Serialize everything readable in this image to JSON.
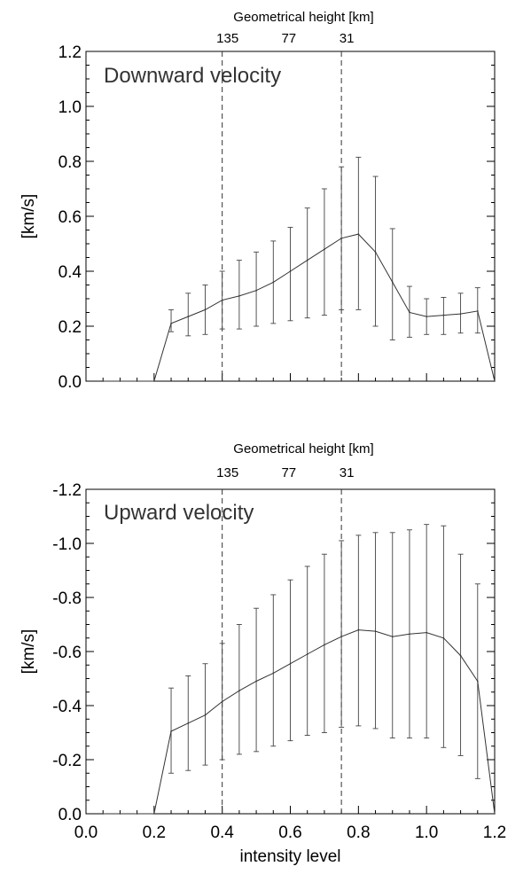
{
  "chart_data": [
    {
      "type": "line",
      "panel_label": "Downward velocity",
      "top_axis_title": "Geometrical height [km]",
      "top_axis_ticks": [
        {
          "x": 0.4,
          "label": "135"
        },
        {
          "x": 0.58,
          "label": "77"
        },
        {
          "x": 0.75,
          "label": "31"
        }
      ],
      "ylabel": "[km/s]",
      "xlabel": "",
      "xlim": [
        0.0,
        1.2
      ],
      "ylim": [
        0.0,
        1.2
      ],
      "y_ticks": [
        0.0,
        0.2,
        0.4,
        0.6,
        0.8,
        1.0,
        1.2
      ],
      "y_tick_labels": [
        "0.0",
        "0.2",
        "0.4",
        "0.6",
        "0.8",
        "1.0",
        "1.2"
      ],
      "x_ticks": [
        0.0,
        0.2,
        0.4,
        0.6,
        0.8,
        1.0,
        1.2
      ],
      "x_tick_labels": [
        "",
        "",
        "",
        "",
        "",
        "",
        ""
      ],
      "dashed_lines_x": [
        0.4,
        0.75
      ],
      "x": [
        0.05,
        0.1,
        0.15,
        0.2,
        0.25,
        0.3,
        0.35,
        0.4,
        0.45,
        0.5,
        0.55,
        0.6,
        0.65,
        0.7,
        0.75,
        0.8,
        0.85,
        0.9,
        0.95,
        1.0,
        1.05,
        1.1,
        1.15,
        1.2
      ],
      "y": [
        0.0,
        0.0,
        0.0,
        0.0,
        0.21,
        0.235,
        0.26,
        0.295,
        0.31,
        0.33,
        0.36,
        0.4,
        0.44,
        0.48,
        0.52,
        0.535,
        0.47,
        0.36,
        0.25,
        0.235,
        0.24,
        0.245,
        0.255,
        0.0
      ],
      "err_low": [
        null,
        null,
        null,
        null,
        0.18,
        0.165,
        0.17,
        0.19,
        0.19,
        0.2,
        0.21,
        0.22,
        0.23,
        0.24,
        0.26,
        0.26,
        0.2,
        0.15,
        0.16,
        0.17,
        0.17,
        0.175,
        0.175,
        null
      ],
      "err_high": [
        null,
        null,
        null,
        null,
        0.26,
        0.32,
        0.35,
        0.4,
        0.44,
        0.47,
        0.51,
        0.56,
        0.63,
        0.7,
        0.78,
        0.815,
        0.745,
        0.555,
        0.345,
        0.3,
        0.305,
        0.32,
        0.34,
        null
      ]
    },
    {
      "type": "line",
      "panel_label": "Upward velocity",
      "top_axis_title": "Geometrical height [km]",
      "top_axis_ticks": [
        {
          "x": 0.4,
          "label": "135"
        },
        {
          "x": 0.58,
          "label": "77"
        },
        {
          "x": 0.75,
          "label": "31"
        }
      ],
      "ylabel": "[km/s]",
      "xlabel": "intensity level",
      "xlim": [
        0.0,
        1.2
      ],
      "ylim": [
        0.0,
        -1.2
      ],
      "y_ticks": [
        0.0,
        -0.2,
        -0.4,
        -0.6,
        -0.8,
        -1.0,
        -1.2
      ],
      "y_tick_labels": [
        "0.0",
        "-0.2",
        "-0.4",
        "-0.6",
        "-0.8",
        "-1.0",
        "-1.2"
      ],
      "x_ticks": [
        0.0,
        0.2,
        0.4,
        0.6,
        0.8,
        1.0,
        1.2
      ],
      "x_tick_labels": [
        "0.0",
        "0.2",
        "0.4",
        "0.6",
        "0.8",
        "1.0",
        "1.2"
      ],
      "dashed_lines_x": [
        0.4,
        0.75
      ],
      "x": [
        0.05,
        0.1,
        0.15,
        0.2,
        0.25,
        0.3,
        0.35,
        0.4,
        0.45,
        0.5,
        0.55,
        0.6,
        0.65,
        0.7,
        0.75,
        0.8,
        0.85,
        0.9,
        0.95,
        1.0,
        1.05,
        1.1,
        1.15,
        1.2
      ],
      "y": [
        0.0,
        0.0,
        0.0,
        0.0,
        -0.305,
        -0.335,
        -0.365,
        -0.415,
        -0.455,
        -0.49,
        -0.52,
        -0.555,
        -0.59,
        -0.625,
        -0.655,
        -0.68,
        -0.675,
        -0.655,
        -0.665,
        -0.67,
        -0.65,
        -0.585,
        -0.49,
        0.0
      ],
      "err_low": [
        null,
        null,
        null,
        null,
        -0.15,
        -0.16,
        -0.18,
        -0.2,
        -0.22,
        -0.23,
        -0.25,
        -0.27,
        -0.29,
        -0.3,
        -0.32,
        -0.325,
        -0.315,
        -0.28,
        -0.28,
        -0.28,
        -0.245,
        -0.215,
        -0.13,
        null
      ],
      "err_high": [
        null,
        null,
        null,
        null,
        -0.465,
        -0.51,
        -0.555,
        -0.63,
        -0.7,
        -0.76,
        -0.81,
        -0.865,
        -0.915,
        -0.96,
        -1.01,
        -1.03,
        -1.04,
        -1.04,
        -1.05,
        -1.07,
        -1.065,
        -0.96,
        -0.85,
        null
      ]
    }
  ]
}
